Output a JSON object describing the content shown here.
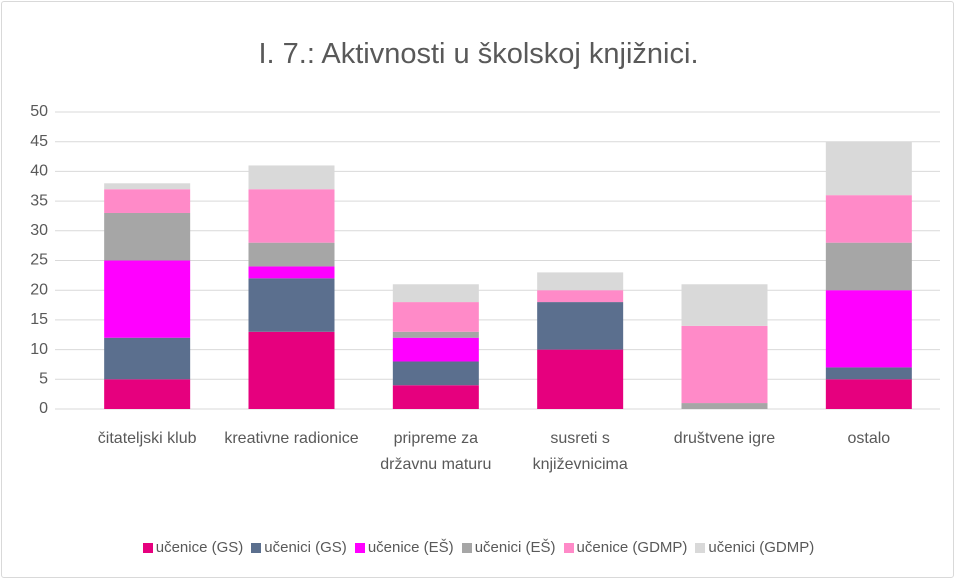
{
  "chart_data": {
    "type": "stacked_bar",
    "title": "I. 7.: Aktivnosti u školskoj knjižnici.",
    "categories": [
      "čitateljski klub",
      "kreativne radionice",
      "pripreme za državnu maturu",
      "susreti s književnicima",
      "društvene igre",
      "ostalo"
    ],
    "series": [
      {
        "name": "učenice (GS)",
        "color": "#e6007e",
        "values": [
          5,
          13,
          4,
          10,
          0,
          5
        ]
      },
      {
        "name": "učenici (GS)",
        "color": "#5b6f8e",
        "values": [
          7,
          9,
          4,
          8,
          0,
          2
        ]
      },
      {
        "name": "učenice (EŠ)",
        "color": "#ff00ff",
        "values": [
          13,
          2,
          4,
          0,
          0,
          13
        ]
      },
      {
        "name": "učenici (EŠ)",
        "color": "#a6a6a6",
        "values": [
          8,
          4,
          1,
          0,
          1,
          8
        ]
      },
      {
        "name": "učenice (GDMP)",
        "color": "#ff8ac8",
        "values": [
          4,
          9,
          5,
          2,
          13,
          8
        ]
      },
      {
        "name": "učenici (GDMP)",
        "color": "#d9d9d9",
        "values": [
          1,
          4,
          3,
          3,
          7,
          9
        ]
      }
    ],
    "ylim": [
      0,
      50
    ],
    "yticks": [
      0,
      5,
      10,
      15,
      20,
      25,
      30,
      35,
      40,
      45,
      50
    ],
    "grid": true,
    "legend": "bottom"
  }
}
